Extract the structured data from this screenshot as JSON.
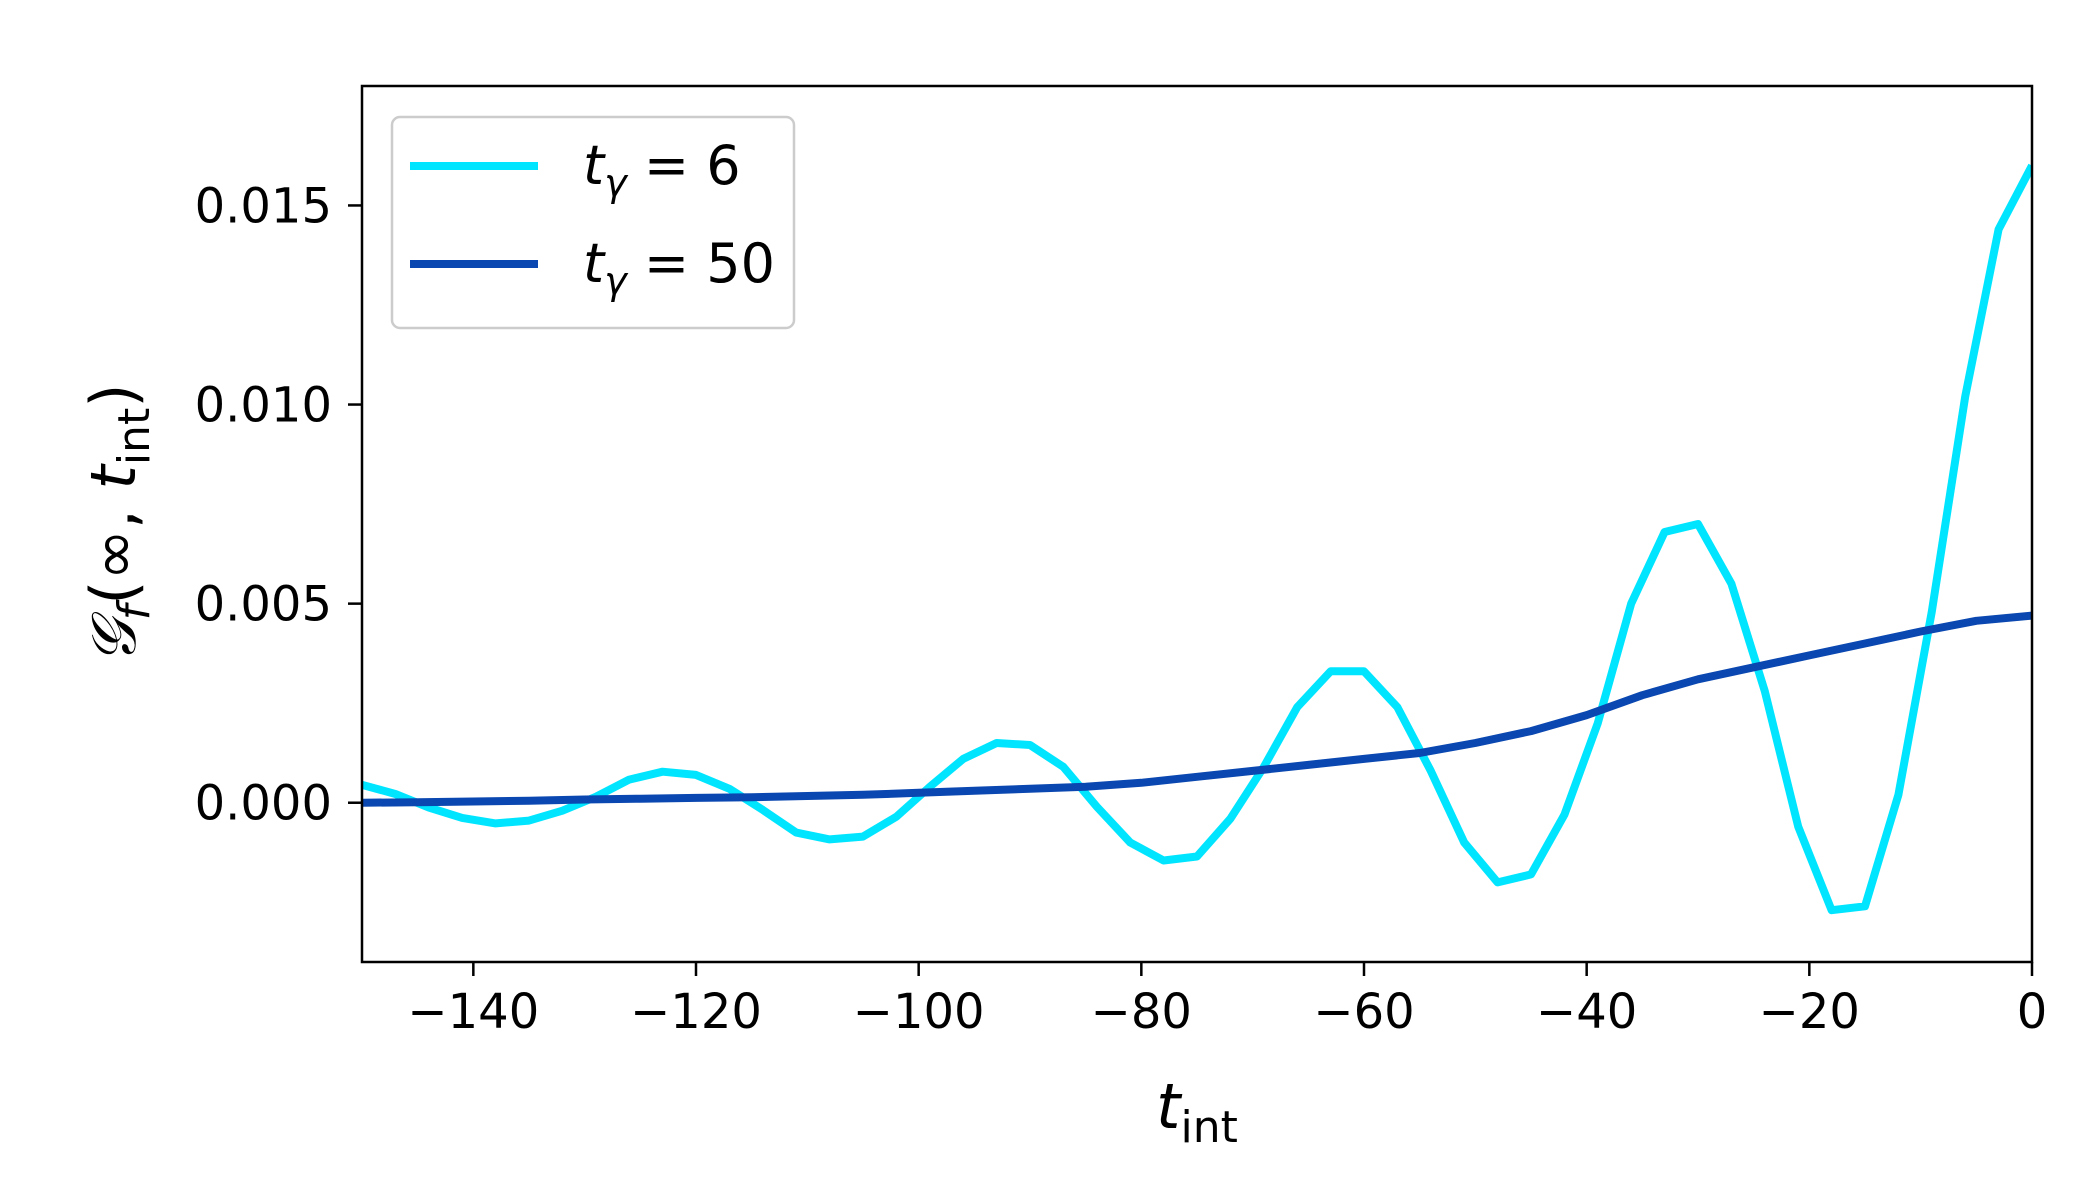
{
  "chart_data": {
    "type": "line",
    "xlabel": "t_int",
    "xlabel_parts": {
      "main": "t",
      "sub": "int"
    },
    "ylabel": "𝒢_f(∞, t_int)",
    "ylabel_parts": {
      "main": "𝒢",
      "sub1": "f",
      "middle": "(∞, ",
      "t": "t",
      "sub2": "int",
      "close": ")"
    },
    "xlim": [
      -150,
      0
    ],
    "ylim": [
      -0.004,
      0.018
    ],
    "xticks": [
      -140,
      -120,
      -100,
      -80,
      -60,
      -40,
      -20,
      0
    ],
    "xtick_labels": [
      "−140",
      "−120",
      "−100",
      "−80",
      "−60",
      "−40",
      "−20",
      "0"
    ],
    "yticks": [
      0.0,
      0.005,
      0.01,
      0.015
    ],
    "ytick_labels": [
      "0.000",
      "0.005",
      "0.010",
      "0.015"
    ],
    "grid": false,
    "legend_position": "top-left",
    "series": [
      {
        "name": "t_γ = 6",
        "legend": {
          "t": "t",
          "sub": "γ",
          "rest": " = 6"
        },
        "color": "#00e5ff",
        "x": [
          -150,
          -147,
          -144,
          -141,
          -138,
          -135,
          -132,
          -129,
          -126,
          -123,
          -120,
          -117,
          -114,
          -111,
          -108,
          -105,
          -102,
          -99,
          -96,
          -93,
          -90,
          -87,
          -84,
          -81,
          -78,
          -75,
          -72,
          -69,
          -66,
          -63,
          -60,
          -57,
          -54,
          -51,
          -48,
          -45,
          -42,
          -39,
          -36,
          -33,
          -30,
          -27,
          -24,
          -21,
          -18,
          -15,
          -12,
          -9,
          -6,
          -3,
          0
        ],
        "y": [
          0.00045,
          0.00022,
          -0.00012,
          -0.00038,
          -0.00052,
          -0.00045,
          -0.0002,
          0.00015,
          0.00058,
          0.00078,
          0.0007,
          0.00035,
          -0.00018,
          -0.00075,
          -0.00092,
          -0.00085,
          -0.00035,
          0.0004,
          0.0011,
          0.0015,
          0.00145,
          0.0009,
          -0.0001,
          -0.001,
          -0.00145,
          -0.00135,
          -0.0004,
          0.0009,
          0.0024,
          0.0033,
          0.0033,
          0.0024,
          0.0008,
          -0.001,
          -0.002,
          -0.0018,
          -0.0003,
          0.002,
          0.005,
          0.0068,
          0.007,
          0.0055,
          0.0028,
          -0.0006,
          -0.0027,
          -0.0026,
          0.0002,
          0.0048,
          0.0102,
          0.0144,
          0.016
        ]
      },
      {
        "name": "t_γ = 50",
        "legend": {
          "t": "t",
          "sub": "γ",
          "rest": " = 50"
        },
        "color": "#0a47b0",
        "x": [
          -150,
          -145,
          -140,
          -135,
          -130,
          -125,
          -120,
          -115,
          -110,
          -105,
          -100,
          -95,
          -90,
          -85,
          -80,
          -75,
          -70,
          -65,
          -60,
          -55,
          -50,
          -45,
          -40,
          -35,
          -30,
          -25,
          -20,
          -15,
          -10,
          -5,
          0
        ],
        "y": [
          0.0,
          1e-05,
          3e-05,
          5e-05,
          8e-05,
          0.0001,
          0.00012,
          0.00014,
          0.00017,
          0.0002,
          0.00025,
          0.0003,
          0.00035,
          0.0004,
          0.0005,
          0.00065,
          0.0008,
          0.00095,
          0.0011,
          0.00125,
          0.0015,
          0.0018,
          0.0022,
          0.0027,
          0.0031,
          0.0034,
          0.0037,
          0.004,
          0.0043,
          0.00457,
          0.0047
        ]
      }
    ]
  }
}
